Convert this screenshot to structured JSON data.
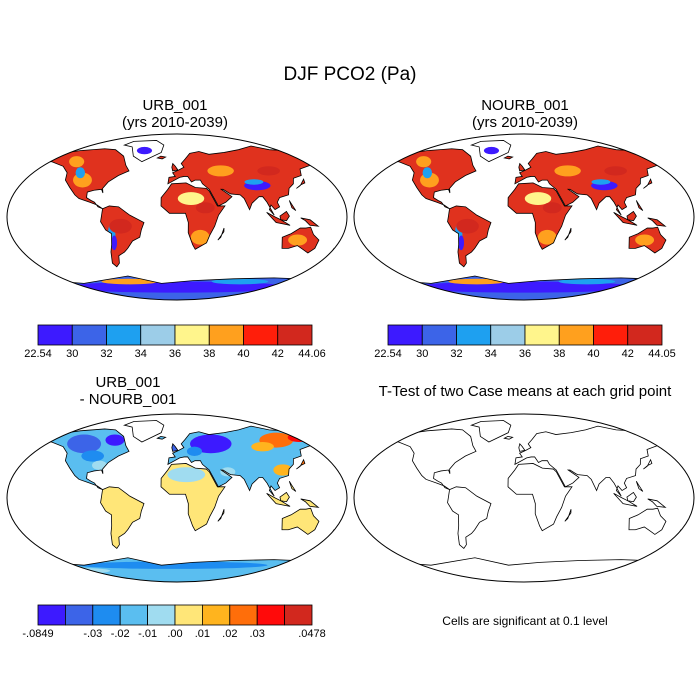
{
  "title": "DJF PCO2 (Pa)",
  "panels": [
    {
      "id": "urb",
      "title_line1": "URB_001",
      "title_line2": "(yrs 2010-2039)",
      "colorbar": {
        "colors": [
          "#3d1aff",
          "#3c64e8",
          "#1ea0f0",
          "#9ccde8",
          "#fff58c",
          "#ffa01e",
          "#ff1e0a",
          "#d2281e"
        ],
        "labels": [
          "22.54",
          "30",
          "32",
          "34",
          "36",
          "38",
          "40",
          "42",
          "44.06"
        ]
      }
    },
    {
      "id": "nourb",
      "title_line1": "NOURB_001",
      "title_line2": "(yrs 2010-2039)",
      "colorbar": {
        "colors": [
          "#3d1aff",
          "#3c64e8",
          "#1ea0f0",
          "#9ccde8",
          "#fff58c",
          "#ffa01e",
          "#ff1e0a",
          "#d2281e"
        ],
        "labels": [
          "22.54",
          "30",
          "32",
          "34",
          "36",
          "38",
          "40",
          "42",
          "44.05"
        ]
      }
    },
    {
      "id": "diff",
      "title_line1": "URB_001",
      "title_line2": "- NOURB_001",
      "colorbar": {
        "colors": [
          "#3d1aff",
          "#3c64e8",
          "#1e8cf0",
          "#5abef0",
          "#a0dcf0",
          "#ffe678",
          "#ffb41e",
          "#ff6e0a",
          "#ff0a0a",
          "#d2281e"
        ],
        "labels": [
          "-.0849",
          "",
          "-.03",
          "-.02",
          "-.01",
          ".00",
          ".01",
          ".02",
          ".03",
          "",
          ".0478"
        ]
      }
    },
    {
      "id": "ttest",
      "title_line1": "T-Test of two Case means at each grid point",
      "note": "Cells are significant at 0.1 level"
    }
  ]
}
